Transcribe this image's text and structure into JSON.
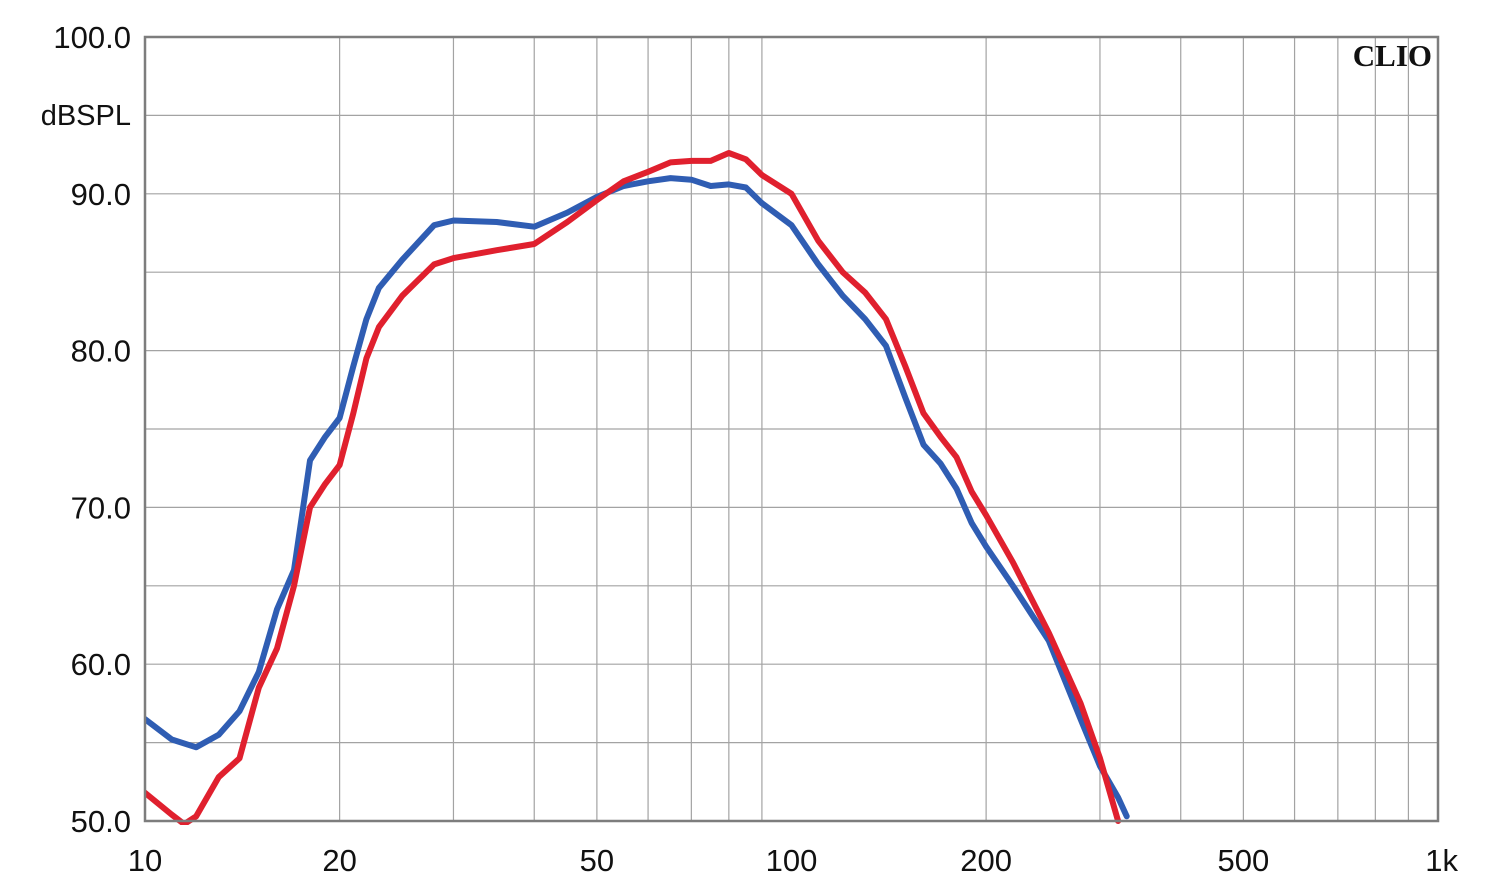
{
  "chart_data": {
    "type": "line",
    "title": "",
    "xlabel": "",
    "ylabel": "dBSPL",
    "brand": "CLIO",
    "x_scale": "log",
    "xlim": [
      10,
      1000
    ],
    "ylim": [
      50,
      100
    ],
    "grid": true,
    "x_ticks": [
      {
        "value": 10,
        "label": "10"
      },
      {
        "value": 20,
        "label": "20"
      },
      {
        "value": 50,
        "label": "50"
      },
      {
        "value": 100,
        "label": "100"
      },
      {
        "value": 200,
        "label": "200"
      },
      {
        "value": 500,
        "label": "500"
      },
      {
        "value": 1000,
        "label": "1k"
      }
    ],
    "y_ticks": [
      {
        "value": 100,
        "label": "100.0"
      },
      {
        "value": 90,
        "label": "90.0"
      },
      {
        "value": 80,
        "label": "80.0"
      },
      {
        "value": 70,
        "label": "70.0"
      },
      {
        "value": 60,
        "label": "60.0"
      },
      {
        "value": 50,
        "label": "50.0"
      }
    ],
    "series": [
      {
        "color": "#2f5db3",
        "points": [
          [
            10,
            56.5
          ],
          [
            11,
            55.2
          ],
          [
            12,
            54.7
          ],
          [
            13,
            55.5
          ],
          [
            14,
            57
          ],
          [
            15,
            59.5
          ],
          [
            16,
            63.5
          ],
          [
            17,
            66
          ],
          [
            18,
            73
          ],
          [
            19,
            74.5
          ],
          [
            20,
            75.7
          ],
          [
            21,
            79
          ],
          [
            22,
            82
          ],
          [
            23,
            84
          ],
          [
            25,
            85.8
          ],
          [
            28,
            88
          ],
          [
            30,
            88.3
          ],
          [
            35,
            88.2
          ],
          [
            40,
            87.9
          ],
          [
            45,
            88.8
          ],
          [
            50,
            89.8
          ],
          [
            55,
            90.5
          ],
          [
            60,
            90.8
          ],
          [
            65,
            91
          ],
          [
            70,
            90.9
          ],
          [
            75,
            90.5
          ],
          [
            80,
            90.6
          ],
          [
            85,
            90.4
          ],
          [
            90,
            89.4
          ],
          [
            100,
            88
          ],
          [
            110,
            85.5
          ],
          [
            120,
            83.5
          ],
          [
            130,
            82
          ],
          [
            140,
            80.3
          ],
          [
            150,
            77
          ],
          [
            160,
            74
          ],
          [
            170,
            72.8
          ],
          [
            180,
            71.2
          ],
          [
            190,
            69
          ],
          [
            200,
            67.5
          ],
          [
            220,
            65
          ],
          [
            250,
            61.5
          ],
          [
            280,
            56.5
          ],
          [
            300,
            53.5
          ],
          [
            320,
            51.5
          ],
          [
            330,
            50.3
          ]
        ]
      },
      {
        "color": "#e0202e",
        "points": [
          [
            10,
            51.8
          ],
          [
            11,
            50.4
          ],
          [
            11.5,
            49.8
          ],
          [
            12,
            50.3
          ],
          [
            13,
            52.8
          ],
          [
            14,
            54
          ],
          [
            15,
            58.5
          ],
          [
            16,
            61
          ],
          [
            17,
            65
          ],
          [
            18,
            70
          ],
          [
            19,
            71.5
          ],
          [
            20,
            72.7
          ],
          [
            21,
            76
          ],
          [
            22,
            79.5
          ],
          [
            23,
            81.5
          ],
          [
            25,
            83.5
          ],
          [
            28,
            85.5
          ],
          [
            30,
            85.9
          ],
          [
            35,
            86.4
          ],
          [
            40,
            86.8
          ],
          [
            45,
            88.2
          ],
          [
            50,
            89.6
          ],
          [
            55,
            90.8
          ],
          [
            60,
            91.4
          ],
          [
            65,
            92
          ],
          [
            70,
            92.1
          ],
          [
            75,
            92.1
          ],
          [
            80,
            92.6
          ],
          [
            85,
            92.2
          ],
          [
            90,
            91.2
          ],
          [
            100,
            90
          ],
          [
            110,
            87
          ],
          [
            120,
            85
          ],
          [
            130,
            83.7
          ],
          [
            140,
            82
          ],
          [
            150,
            79
          ],
          [
            160,
            76
          ],
          [
            170,
            74.5
          ],
          [
            180,
            73.2
          ],
          [
            190,
            71
          ],
          [
            200,
            69.5
          ],
          [
            220,
            66.5
          ],
          [
            250,
            62
          ],
          [
            280,
            57.5
          ],
          [
            300,
            54
          ],
          [
            320,
            50
          ]
        ]
      }
    ]
  }
}
